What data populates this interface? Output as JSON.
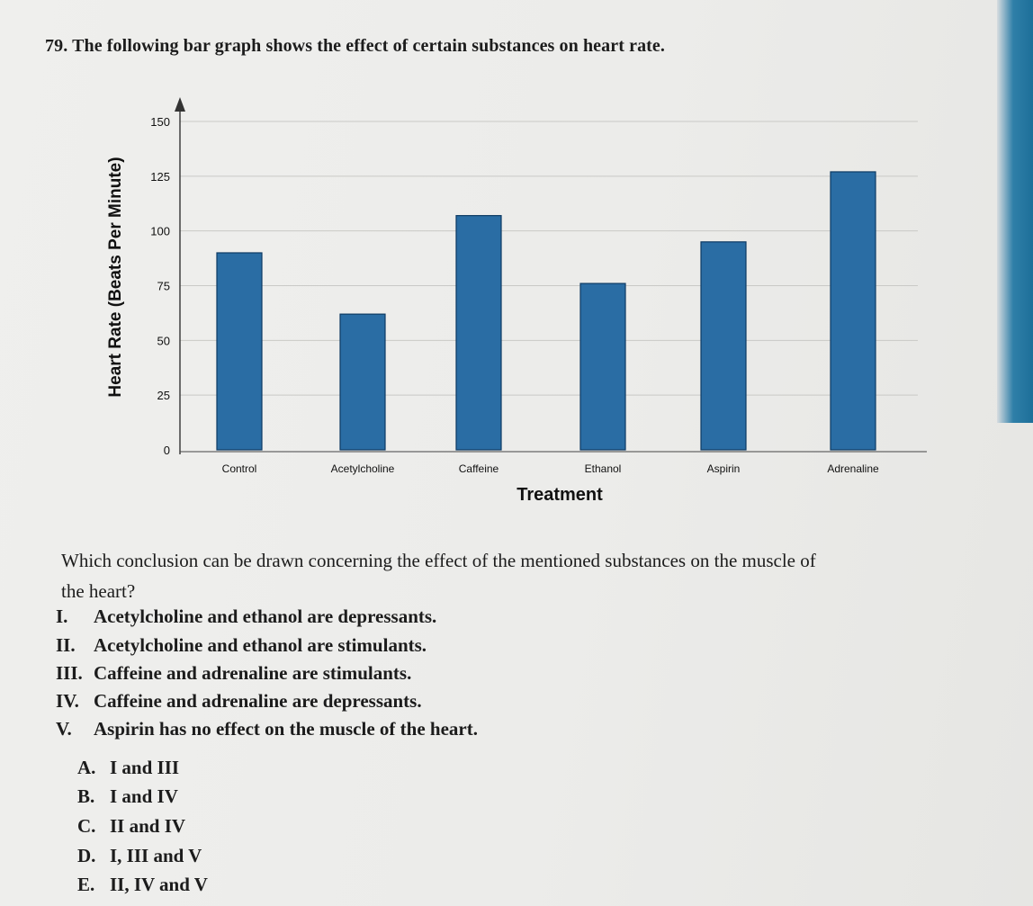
{
  "question": {
    "number": "79.",
    "title": "The following bar graph shows the effect of certain substances on heart rate.",
    "prompt_line1": "Which conclusion can be drawn concerning the effect of the mentioned substances on the muscle of",
    "prompt_line2": "the heart?"
  },
  "statements": [
    {
      "num": "I.",
      "text": "Acetylcholine and ethanol are depressants."
    },
    {
      "num": "II.",
      "text": "Acetylcholine and ethanol are stimulants."
    },
    {
      "num": "III.",
      "text": "Caffeine and adrenaline are stimulants."
    },
    {
      "num": "IV.",
      "text": "Caffeine and adrenaline are depressants."
    },
    {
      "num": "V.",
      "text": "Aspirin has no effect on the muscle of the heart."
    }
  ],
  "options": [
    {
      "letter": "A.",
      "text": "I and III"
    },
    {
      "letter": "B.",
      "text": "I and IV"
    },
    {
      "letter": "C.",
      "text": "II and IV"
    },
    {
      "letter": "D.",
      "text": "I, III and V"
    },
    {
      "letter": "E.",
      "text": "II, IV and V"
    }
  ],
  "chart_data": {
    "type": "bar",
    "categories": [
      "Control",
      "Acetylcholine",
      "Caffeine",
      "Ethanol",
      "Aspirin",
      "Adrenaline"
    ],
    "values": [
      90,
      62,
      107,
      76,
      95,
      127
    ],
    "xlabel": "Treatment",
    "ylabel": "Heart Rate (Beats Per Minute)",
    "yticks": [
      "0",
      "25",
      "50",
      "75",
      "100",
      "125",
      "150"
    ],
    "ylim": [
      0,
      150
    ],
    "grid": true,
    "legend": "none",
    "bar_color": "#2a6da4",
    "bar_edge_color": "#0d3a63"
  }
}
